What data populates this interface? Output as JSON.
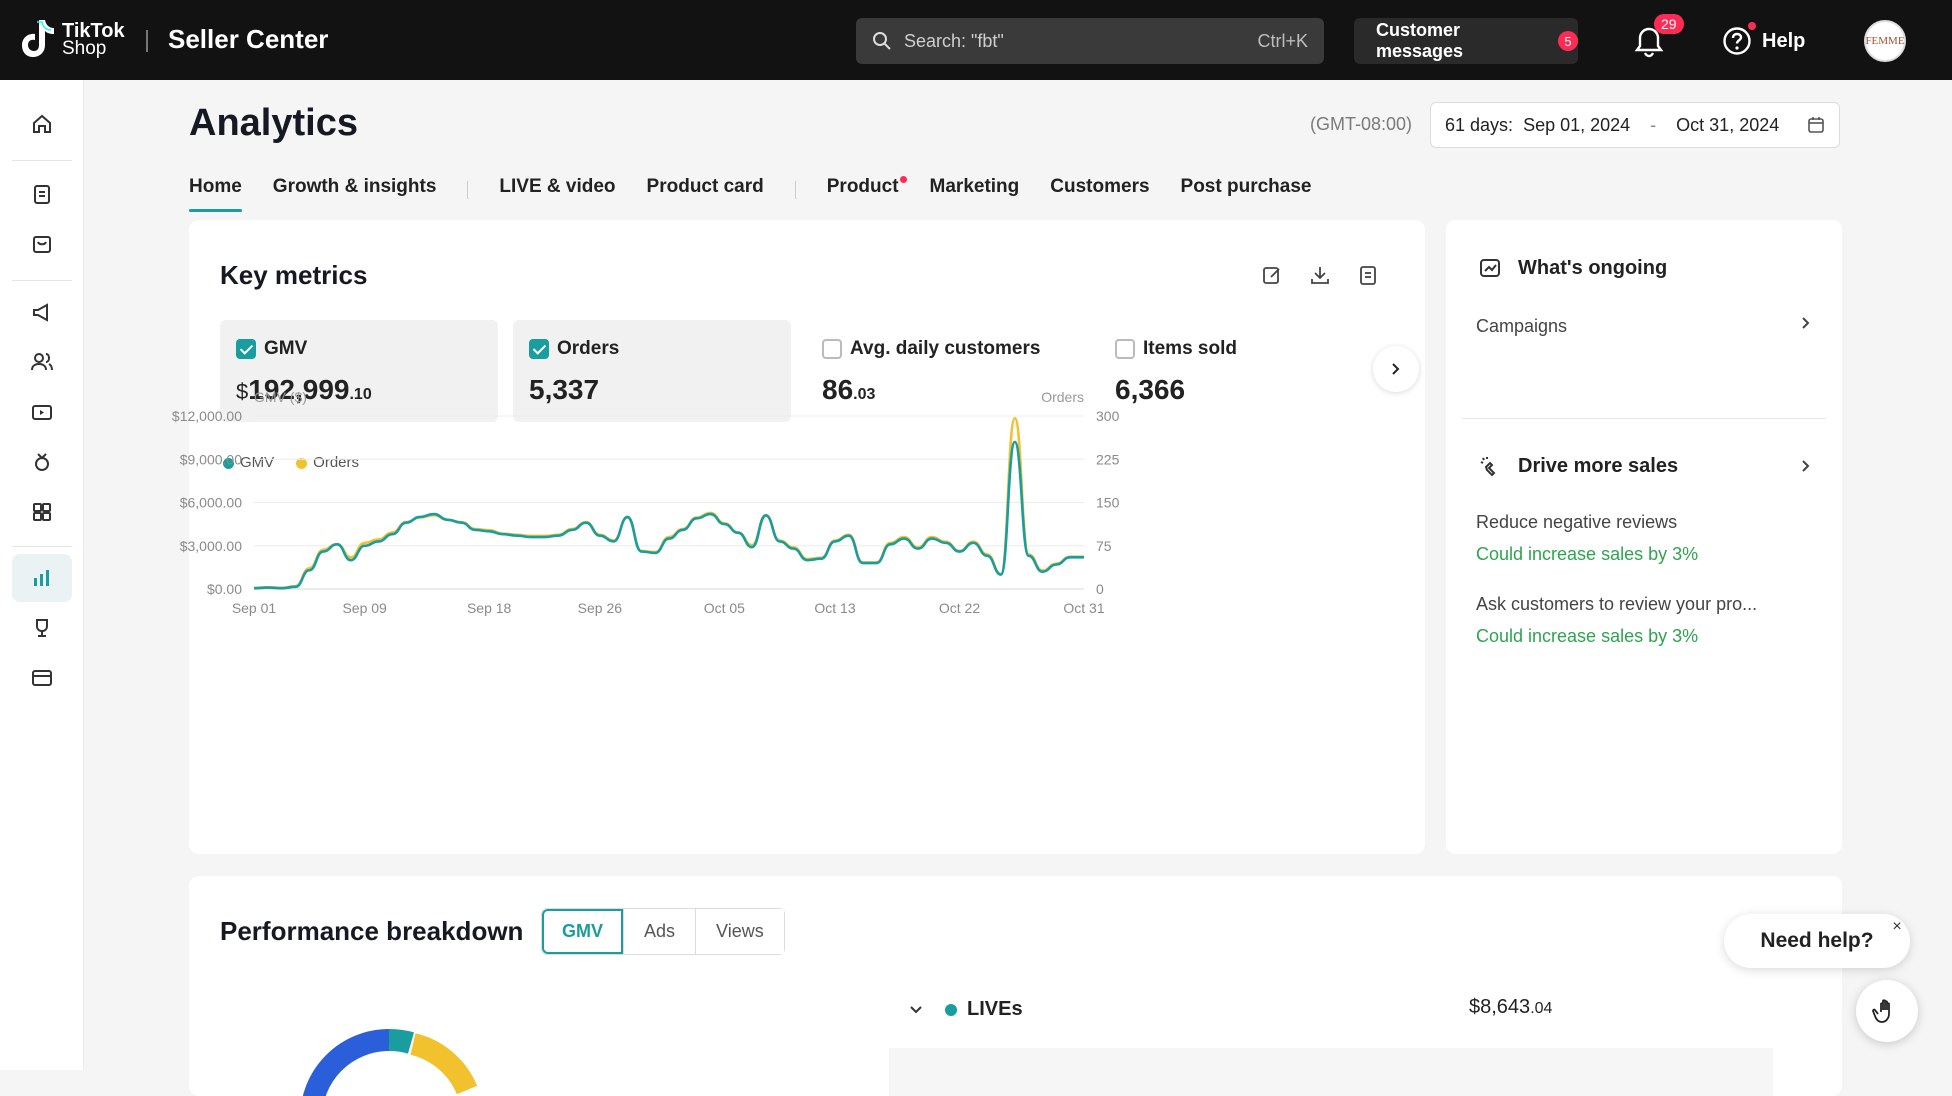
{
  "topbar": {
    "brand_line1": "TikTok",
    "brand_line2": "Shop",
    "app_title": "Seller Center",
    "search_placeholder": "Search: \"fbt\"",
    "search_shortcut": "Ctrl+K",
    "customer_messages_label": "Customer messages",
    "customer_messages_count": "5",
    "notifications_count": "29",
    "help_label": "Help",
    "avatar_text": "FEMME"
  },
  "page": {
    "title": "Analytics",
    "timezone": "(GMT-08:00)",
    "date_range_days": "61 days:",
    "date_from": "Sep 01, 2024",
    "date_separator": "-",
    "date_to": "Oct 31, 2024"
  },
  "tabs": [
    {
      "label": "Home",
      "active": true
    },
    {
      "label": "Growth & insights"
    },
    {
      "label": "LIVE & video"
    },
    {
      "label": "Product card"
    },
    {
      "label": "Product",
      "dot": true
    },
    {
      "label": "Marketing"
    },
    {
      "label": "Customers"
    },
    {
      "label": "Post purchase"
    }
  ],
  "key_metrics": {
    "title": "Key metrics",
    "metrics": [
      {
        "label": "GMV",
        "currency": "$",
        "value": "192,999",
        "decimal": ".10",
        "checked": true
      },
      {
        "label": "Orders",
        "value": "5,337",
        "checked": true
      },
      {
        "label": "Avg. daily customers",
        "value": "86",
        "decimal": ".03",
        "checked": false
      },
      {
        "label": "Items sold",
        "value": "6,366",
        "checked": false
      }
    ]
  },
  "chart_data": {
    "type": "line",
    "left_axis_label": "GMV ($)",
    "right_axis_label": "Orders",
    "y_left_ticks": [
      "$0.00",
      "$3,000.00",
      "$6,000.00",
      "$9,000.00",
      "$12,000.00"
    ],
    "y_right_ticks": [
      "0",
      "75",
      "150",
      "225",
      "300"
    ],
    "x_ticks": [
      "Sep 01",
      "Sep 09",
      "Sep 18",
      "Sep 26",
      "Oct 05",
      "Oct 13",
      "Oct 22",
      "Oct 31"
    ],
    "ylim_left": [
      0,
      12000
    ],
    "ylim_right": [
      0,
      300
    ],
    "x": [
      "Sep 01",
      "Sep 02",
      "Sep 03",
      "Sep 04",
      "Sep 05",
      "Sep 06",
      "Sep 07",
      "Sep 08",
      "Sep 09",
      "Sep 10",
      "Sep 11",
      "Sep 12",
      "Sep 13",
      "Sep 14",
      "Sep 15",
      "Sep 16",
      "Sep 17",
      "Sep 18",
      "Sep 19",
      "Sep 20",
      "Sep 21",
      "Sep 22",
      "Sep 23",
      "Sep 24",
      "Sep 25",
      "Sep 26",
      "Sep 27",
      "Sep 28",
      "Sep 29",
      "Sep 30",
      "Oct 01",
      "Oct 02",
      "Oct 03",
      "Oct 04",
      "Oct 05",
      "Oct 06",
      "Oct 07",
      "Oct 08",
      "Oct 09",
      "Oct 10",
      "Oct 11",
      "Oct 12",
      "Oct 13",
      "Oct 14",
      "Oct 15",
      "Oct 16",
      "Oct 17",
      "Oct 18",
      "Oct 19",
      "Oct 20",
      "Oct 21",
      "Oct 22",
      "Oct 23",
      "Oct 24",
      "Oct 25",
      "Oct 26",
      "Oct 27",
      "Oct 28",
      "Oct 29",
      "Oct 30",
      "Oct 31"
    ],
    "series": [
      {
        "name": "GMV",
        "color": "#1a9d9f",
        "axis": "left",
        "values": [
          50,
          100,
          50,
          150,
          1300,
          2600,
          3100,
          2000,
          3000,
          3300,
          3800,
          4600,
          5000,
          5200,
          4800,
          4600,
          4100,
          4000,
          3800,
          3700,
          3600,
          3600,
          3700,
          4100,
          4600,
          3700,
          3300,
          5000,
          2600,
          2500,
          3500,
          4100,
          4900,
          5200,
          4500,
          3900,
          2900,
          5100,
          3300,
          2800,
          2000,
          2100,
          3300,
          3700,
          1800,
          1800,
          3100,
          3500,
          2800,
          3500,
          3200,
          2600,
          3200,
          2300,
          1000,
          10200,
          2300,
          1200,
          1700,
          2200,
          2200
        ]
      },
      {
        "name": "Orders",
        "color": "#f2c12e",
        "axis": "right",
        "values": [
          2,
          3,
          2,
          5,
          36,
          68,
          78,
          55,
          80,
          86,
          98,
          116,
          124,
          128,
          120,
          116,
          104,
          102,
          96,
          94,
          92,
          92,
          94,
          104,
          116,
          94,
          84,
          124,
          66,
          64,
          90,
          104,
          124,
          132,
          114,
          98,
          76,
          128,
          84,
          72,
          52,
          54,
          84,
          94,
          46,
          46,
          80,
          90,
          72,
          90,
          82,
          66,
          82,
          60,
          26,
          296,
          60,
          32,
          44,
          56,
          56
        ]
      }
    ]
  },
  "ongoing": {
    "title": "What's ongoing",
    "campaigns_label": "Campaigns",
    "drive_title": "Drive more sales",
    "items": [
      {
        "label": "Reduce negative reviews",
        "impact": "Could increase sales by 3%"
      },
      {
        "label": "Ask customers to review your pro...",
        "impact": "Could increase sales by 3%"
      }
    ]
  },
  "performance": {
    "title": "Performance breakdown",
    "segments": [
      "GMV",
      "Ads",
      "Views"
    ],
    "lives_label": "LIVEs",
    "lives_currency": "$",
    "lives_value": "8,643",
    "lives_decimal": ".04"
  },
  "support": {
    "need_help": "Need help?",
    "close": "×"
  }
}
